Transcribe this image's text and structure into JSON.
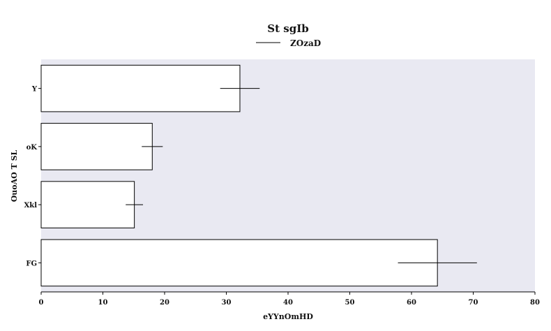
{
  "chart_data": {
    "type": "bar",
    "orientation": "horizontal",
    "title": "St sgIb",
    "xlabel": "eYYnOmHD",
    "ylabel": "OuoAO T SL",
    "categories": [
      "Y",
      "oK",
      "Xkl",
      "FG"
    ],
    "series": [
      {
        "name": "ZOzaD",
        "values": [
          32.2,
          18.0,
          15.1,
          64.2
        ],
        "error": [
          3.2,
          1.7,
          1.4,
          6.4
        ]
      }
    ],
    "xlim": [
      0,
      80
    ],
    "xticks": [
      "0",
      "10",
      "20",
      "30",
      "40",
      "50",
      "60",
      "70",
      "80"
    ],
    "grid": false,
    "legend_position": "top-center",
    "colors": {
      "plot_background": "#e9e9f2",
      "bar_fill": "#ffffff",
      "bar_stroke": "#000000",
      "error_bar": "#000000"
    }
  }
}
